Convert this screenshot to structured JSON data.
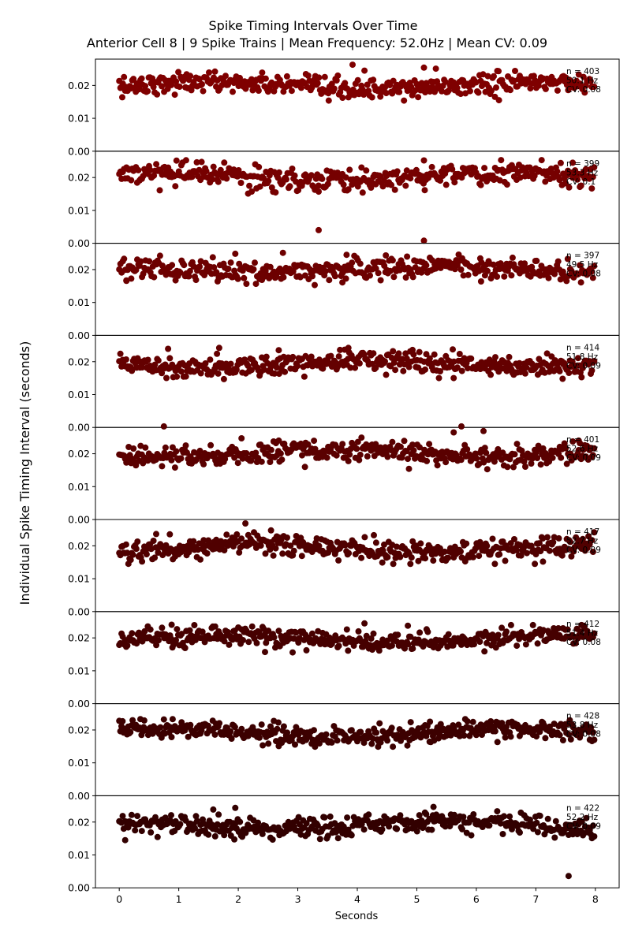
{
  "chart_data": {
    "type": "scatter",
    "title": "Spike Timing Intervals Over Time",
    "subtitle": "Anterior Cell 8 | 9 Spike Trains | Mean Frequency: 52.0Hz | Mean CV: 0.09",
    "xlabel": "Seconds",
    "ylabel": "Individual Spike Timing Interval (seconds)",
    "xlim": [
      -0.4,
      8.4
    ],
    "ylim": [
      0,
      0.028
    ],
    "x_ticks": [
      0,
      1,
      2,
      3,
      4,
      5,
      6,
      7,
      8
    ],
    "y_ticks": [
      0.0,
      0.01,
      0.02
    ],
    "y_tick_labels": [
      "0.00",
      "0.01",
      "0.02"
    ],
    "grid": false,
    "legend": "none",
    "panels": [
      {
        "n": "n = 403",
        "freq": "50.1 Hz",
        "cv": "CV: 0.08",
        "color": "#7f0000",
        "mean": 0.0199,
        "sd": 0.0015,
        "outliers": [
          [
            3.92,
            0.0263
          ],
          [
            5.12,
            0.0254
          ],
          [
            5.32,
            0.0251
          ],
          [
            4.12,
            0.0245
          ],
          [
            3.52,
            0.0154
          ],
          [
            6.38,
            0.0155
          ],
          [
            0.05,
            0.0164
          ]
        ]
      },
      {
        "n": "n = 399",
        "freq": "53.3 Hz",
        "cv": "CV: 0.1",
        "color": "#760000",
        "mean": 0.0202,
        "sd": 0.0017,
        "outliers": [
          [
            5.12,
            0.0252
          ],
          [
            3.35,
            0.004
          ],
          [
            5.12,
            0.0008
          ],
          [
            3.35,
            0.0157
          ],
          [
            0.68,
            0.0161
          ],
          [
            7.62,
            0.0245
          ]
        ]
      },
      {
        "n": "n = 397",
        "freq": "49.5 Hz",
        "cv": "CV: 0.08",
        "color": "#6d0000",
        "mean": 0.0201,
        "sd": 0.0016,
        "outliers": [
          [
            2.75,
            0.0251
          ],
          [
            1.95,
            0.0248
          ],
          [
            3.82,
            0.0245
          ],
          [
            4.48,
            0.0243
          ],
          [
            3.75,
            0.0161
          ],
          [
            6.08,
            0.0164
          ],
          [
            0.12,
            0.0167
          ]
        ]
      },
      {
        "n": "n = 414",
        "freq": "51.8 Hz",
        "cv": "CV: 0.09",
        "color": "#640000",
        "mean": 0.0195,
        "sd": 0.0016,
        "outliers": [
          [
            1.68,
            0.0242
          ],
          [
            3.85,
            0.0242
          ],
          [
            0.82,
            0.0239
          ],
          [
            2.68,
            0.0235
          ],
          [
            5.62,
            0.015
          ],
          [
            7.45,
            0.0148
          ]
        ]
      },
      {
        "n": "n = 401",
        "freq": "52.6 Hz",
        "cv": "CV: 0.09",
        "color": "#5a0000",
        "mean": 0.0201,
        "sd": 0.0016,
        "outliers": [
          [
            0.75,
            0.0283
          ],
          [
            5.75,
            0.0283
          ],
          [
            6.12,
            0.0269
          ],
          [
            5.62,
            0.0265
          ],
          [
            2.68,
            0.024
          ],
          [
            7.72,
            0.024
          ],
          [
            3.12,
            0.016
          ]
        ]
      },
      {
        "n": "n = 417",
        "freq": "52.7 Hz",
        "cv": "CV: 0.09",
        "color": "#500000",
        "mean": 0.0193,
        "sd": 0.0016,
        "outliers": [
          [
            2.12,
            0.0268
          ],
          [
            2.55,
            0.0247
          ],
          [
            0.62,
            0.0236
          ],
          [
            0.85,
            0.0235
          ],
          [
            4.42,
            0.0149
          ],
          [
            7.12,
            0.0152
          ]
        ]
      },
      {
        "n": "n = 412",
        "freq": "51.4 Hz",
        "cv": "CV: 0.08",
        "color": "#460000",
        "mean": 0.0197,
        "sd": 0.0014,
        "outliers": [
          [
            4.12,
            0.0244
          ],
          [
            0.88,
            0.024
          ],
          [
            4.85,
            0.0237
          ],
          [
            0.48,
            0.0235
          ],
          [
            7.82,
            0.0228
          ],
          [
            2.45,
            0.0157
          ]
        ]
      },
      {
        "n": "n = 428",
        "freq": "53.8 Hz",
        "cv": "CV: 0.08",
        "color": "#3c0000",
        "mean": 0.0191,
        "sd": 0.0014,
        "outliers": [
          [
            0.75,
            0.0232
          ],
          [
            0.42,
            0.0229
          ],
          [
            5.22,
            0.0225
          ],
          [
            7.12,
            0.0222
          ],
          [
            4.35,
            0.0149
          ],
          [
            2.68,
            0.0151
          ]
        ]
      },
      {
        "n": "n = 422",
        "freq": "52.2 Hz",
        "cv": "CV: 0.09",
        "color": "#320000",
        "mean": 0.019,
        "sd": 0.0015,
        "outliers": [
          [
            7.55,
            0.0036
          ],
          [
            5.28,
            0.0246
          ],
          [
            1.95,
            0.0243
          ],
          [
            0.1,
            0.0145
          ],
          [
            7.55,
            0.0161
          ],
          [
            1.58,
            0.0238
          ]
        ]
      }
    ]
  }
}
